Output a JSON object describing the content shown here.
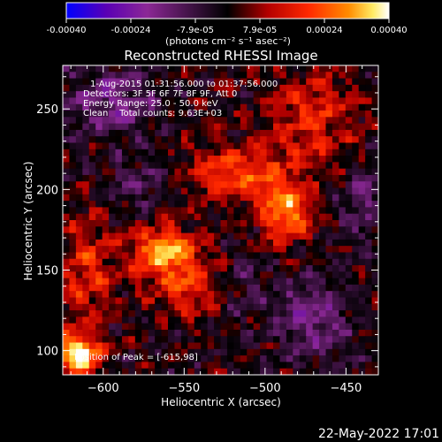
{
  "colorbar": {
    "ticks": [
      "-0.00040",
      "-0.00024",
      "-7.9e-05",
      "7.9e-05",
      "0.00024",
      "0.00040"
    ],
    "unit_label": "(photons cm⁻² s⁻¹ asec⁻²)"
  },
  "chart_data": {
    "type": "heatmap",
    "title": "Reconstructed RHESSI Image",
    "xlabel": "Heliocentric X (arcsec)",
    "ylabel": "Heliocentric Y (arcsec)",
    "xlim": [
      -625,
      -430
    ],
    "ylim": [
      85,
      277
    ],
    "x_ticks": [
      -600,
      -550,
      -500,
      -450
    ],
    "x_tick_labels": [
      "−600",
      "−550",
      "−500",
      "−450"
    ],
    "y_ticks": [
      100,
      150,
      200,
      250
    ],
    "y_tick_labels": [
      "100",
      "150",
      "200",
      "250"
    ],
    "value_range": [
      -0.0004,
      0.0004
    ],
    "colormap": [
      "#0000ff",
      "#5a00b4",
      "#8c2896",
      "#000000",
      "#b40000",
      "#ff2800",
      "#ff8c00",
      "#ffeb64",
      "#ffffff"
    ],
    "annotations": {
      "time": "1-Aug-2015 01:31:56.000 to 01:37:56.000",
      "detectors": "Detectors: 3F 5F 6F 7F 8F 9F, Att 0",
      "energy": "Energy Range: 25.0 - 50.0 keV",
      "clean": "Clean    Total counts: 9.63E+03",
      "peak": "Position of Peak = [-615,98]"
    },
    "peak_position": [
      -615,
      98
    ],
    "grid_cells": [
      48,
      48
    ],
    "features": [
      {
        "x": -615,
        "y": 98,
        "amplitude": 0.00042,
        "sx": 9,
        "sy": 9
      },
      {
        "x": -562,
        "y": 162,
        "amplitude": 0.00032,
        "sx": 14,
        "sy": 10
      },
      {
        "x": -545,
        "y": 140,
        "amplitude": 0.0002,
        "sx": 18,
        "sy": 12
      },
      {
        "x": -487,
        "y": 185,
        "amplitude": 0.00031,
        "sx": 10,
        "sy": 12
      },
      {
        "x": -515,
        "y": 210,
        "amplitude": 0.00022,
        "sx": 22,
        "sy": 12
      },
      {
        "x": -470,
        "y": 245,
        "amplitude": 0.00017,
        "sx": 18,
        "sy": 20
      },
      {
        "x": -610,
        "y": 150,
        "amplitude": 0.00016,
        "sx": 12,
        "sy": 22
      },
      {
        "x": -595,
        "y": 255,
        "amplitude": -0.00018,
        "sx": 20,
        "sy": 14
      },
      {
        "x": -470,
        "y": 120,
        "amplitude": -0.00016,
        "sx": 18,
        "sy": 18
      },
      {
        "x": -520,
        "y": 140,
        "amplitude": -0.00012,
        "sx": 14,
        "sy": 12
      },
      {
        "x": -440,
        "y": 190,
        "amplitude": -0.00012,
        "sx": 10,
        "sy": 16
      },
      {
        "x": -580,
        "y": 205,
        "amplitude": -0.0001,
        "sx": 14,
        "sy": 12
      }
    ],
    "noise_amplitude": 0.00012,
    "grid": false
  },
  "footer": {
    "timestamp": "22-May-2022 17:01"
  }
}
